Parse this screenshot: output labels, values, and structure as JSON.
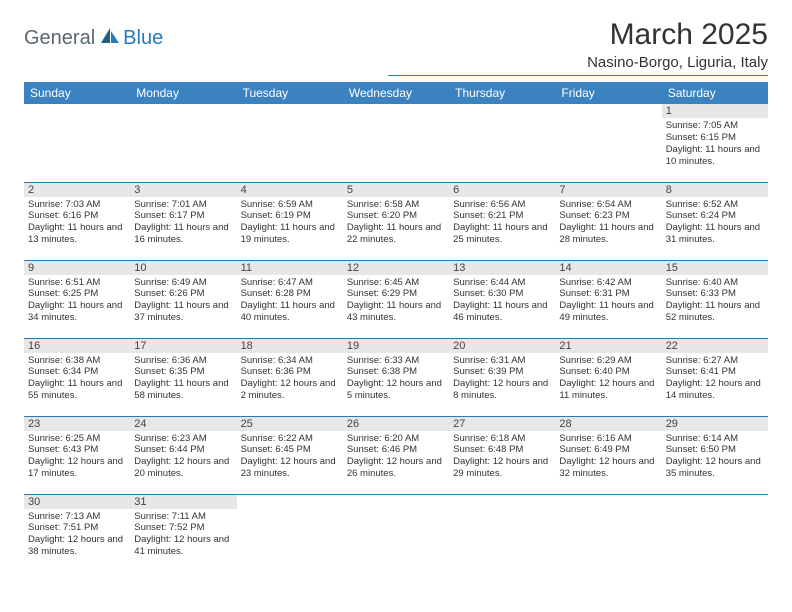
{
  "brand": {
    "general": "General",
    "blue": "Blue"
  },
  "title": "March 2025",
  "location": "Nasino-Borgo, Liguria, Italy",
  "colors": {
    "header_bg": "#3b83c0",
    "header_text": "#ffffff",
    "daynum_bg": "#e7e7e7",
    "border": "#2a7ab8",
    "text": "#333333"
  },
  "weekdays": [
    "Sunday",
    "Monday",
    "Tuesday",
    "Wednesday",
    "Thursday",
    "Friday",
    "Saturday"
  ],
  "weeks": [
    [
      null,
      null,
      null,
      null,
      null,
      null,
      {
        "n": "1",
        "sr": "Sunrise: 7:05 AM",
        "ss": "Sunset: 6:15 PM",
        "dl": "Daylight: 11 hours and 10 minutes."
      }
    ],
    [
      {
        "n": "2",
        "sr": "Sunrise: 7:03 AM",
        "ss": "Sunset: 6:16 PM",
        "dl": "Daylight: 11 hours and 13 minutes."
      },
      {
        "n": "3",
        "sr": "Sunrise: 7:01 AM",
        "ss": "Sunset: 6:17 PM",
        "dl": "Daylight: 11 hours and 16 minutes."
      },
      {
        "n": "4",
        "sr": "Sunrise: 6:59 AM",
        "ss": "Sunset: 6:19 PM",
        "dl": "Daylight: 11 hours and 19 minutes."
      },
      {
        "n": "5",
        "sr": "Sunrise: 6:58 AM",
        "ss": "Sunset: 6:20 PM",
        "dl": "Daylight: 11 hours and 22 minutes."
      },
      {
        "n": "6",
        "sr": "Sunrise: 6:56 AM",
        "ss": "Sunset: 6:21 PM",
        "dl": "Daylight: 11 hours and 25 minutes."
      },
      {
        "n": "7",
        "sr": "Sunrise: 6:54 AM",
        "ss": "Sunset: 6:23 PM",
        "dl": "Daylight: 11 hours and 28 minutes."
      },
      {
        "n": "8",
        "sr": "Sunrise: 6:52 AM",
        "ss": "Sunset: 6:24 PM",
        "dl": "Daylight: 11 hours and 31 minutes."
      }
    ],
    [
      {
        "n": "9",
        "sr": "Sunrise: 6:51 AM",
        "ss": "Sunset: 6:25 PM",
        "dl": "Daylight: 11 hours and 34 minutes."
      },
      {
        "n": "10",
        "sr": "Sunrise: 6:49 AM",
        "ss": "Sunset: 6:26 PM",
        "dl": "Daylight: 11 hours and 37 minutes."
      },
      {
        "n": "11",
        "sr": "Sunrise: 6:47 AM",
        "ss": "Sunset: 6:28 PM",
        "dl": "Daylight: 11 hours and 40 minutes."
      },
      {
        "n": "12",
        "sr": "Sunrise: 6:45 AM",
        "ss": "Sunset: 6:29 PM",
        "dl": "Daylight: 11 hours and 43 minutes."
      },
      {
        "n": "13",
        "sr": "Sunrise: 6:44 AM",
        "ss": "Sunset: 6:30 PM",
        "dl": "Daylight: 11 hours and 46 minutes."
      },
      {
        "n": "14",
        "sr": "Sunrise: 6:42 AM",
        "ss": "Sunset: 6:31 PM",
        "dl": "Daylight: 11 hours and 49 minutes."
      },
      {
        "n": "15",
        "sr": "Sunrise: 6:40 AM",
        "ss": "Sunset: 6:33 PM",
        "dl": "Daylight: 11 hours and 52 minutes."
      }
    ],
    [
      {
        "n": "16",
        "sr": "Sunrise: 6:38 AM",
        "ss": "Sunset: 6:34 PM",
        "dl": "Daylight: 11 hours and 55 minutes."
      },
      {
        "n": "17",
        "sr": "Sunrise: 6:36 AM",
        "ss": "Sunset: 6:35 PM",
        "dl": "Daylight: 11 hours and 58 minutes."
      },
      {
        "n": "18",
        "sr": "Sunrise: 6:34 AM",
        "ss": "Sunset: 6:36 PM",
        "dl": "Daylight: 12 hours and 2 minutes."
      },
      {
        "n": "19",
        "sr": "Sunrise: 6:33 AM",
        "ss": "Sunset: 6:38 PM",
        "dl": "Daylight: 12 hours and 5 minutes."
      },
      {
        "n": "20",
        "sr": "Sunrise: 6:31 AM",
        "ss": "Sunset: 6:39 PM",
        "dl": "Daylight: 12 hours and 8 minutes."
      },
      {
        "n": "21",
        "sr": "Sunrise: 6:29 AM",
        "ss": "Sunset: 6:40 PM",
        "dl": "Daylight: 12 hours and 11 minutes."
      },
      {
        "n": "22",
        "sr": "Sunrise: 6:27 AM",
        "ss": "Sunset: 6:41 PM",
        "dl": "Daylight: 12 hours and 14 minutes."
      }
    ],
    [
      {
        "n": "23",
        "sr": "Sunrise: 6:25 AM",
        "ss": "Sunset: 6:43 PM",
        "dl": "Daylight: 12 hours and 17 minutes."
      },
      {
        "n": "24",
        "sr": "Sunrise: 6:23 AM",
        "ss": "Sunset: 6:44 PM",
        "dl": "Daylight: 12 hours and 20 minutes."
      },
      {
        "n": "25",
        "sr": "Sunrise: 6:22 AM",
        "ss": "Sunset: 6:45 PM",
        "dl": "Daylight: 12 hours and 23 minutes."
      },
      {
        "n": "26",
        "sr": "Sunrise: 6:20 AM",
        "ss": "Sunset: 6:46 PM",
        "dl": "Daylight: 12 hours and 26 minutes."
      },
      {
        "n": "27",
        "sr": "Sunrise: 6:18 AM",
        "ss": "Sunset: 6:48 PM",
        "dl": "Daylight: 12 hours and 29 minutes."
      },
      {
        "n": "28",
        "sr": "Sunrise: 6:16 AM",
        "ss": "Sunset: 6:49 PM",
        "dl": "Daylight: 12 hours and 32 minutes."
      },
      {
        "n": "29",
        "sr": "Sunrise: 6:14 AM",
        "ss": "Sunset: 6:50 PM",
        "dl": "Daylight: 12 hours and 35 minutes."
      }
    ],
    [
      {
        "n": "30",
        "sr": "Sunrise: 7:13 AM",
        "ss": "Sunset: 7:51 PM",
        "dl": "Daylight: 12 hours and 38 minutes."
      },
      {
        "n": "31",
        "sr": "Sunrise: 7:11 AM",
        "ss": "Sunset: 7:52 PM",
        "dl": "Daylight: 12 hours and 41 minutes."
      },
      null,
      null,
      null,
      null,
      null
    ]
  ]
}
